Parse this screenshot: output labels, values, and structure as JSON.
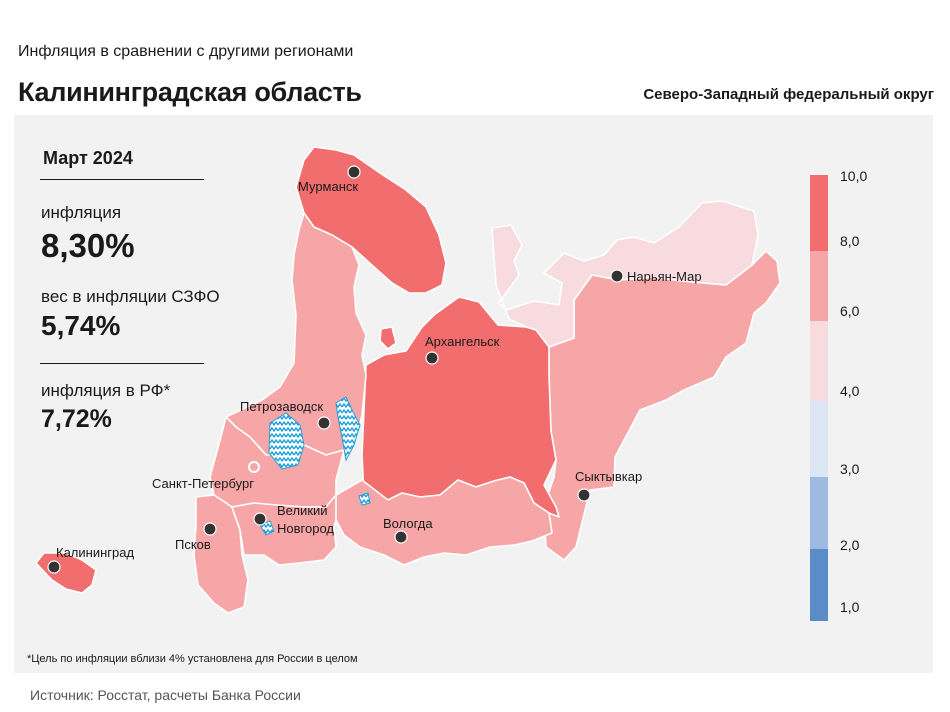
{
  "header": {
    "supertitle": "Инфляция в сравнении с другими регионами",
    "title": "Калининградская область",
    "district": "Северо-Западный федеральный округ"
  },
  "info": {
    "period": "Март 2024",
    "inflation_label": "инфляция",
    "inflation_value": "8,30%",
    "weight_label": "вес в инфляции СЗФО",
    "weight_value": "5,74%",
    "rf_label": "инфляция в РФ*",
    "rf_value": "7,72%"
  },
  "legend": {
    "ticks": [
      "10,0",
      "8,0",
      "6,0",
      "4,0",
      "3,0",
      "2,0",
      "1,0"
    ],
    "colors": [
      "#f26d6d",
      "#f6a6a6",
      "#f8dbdf",
      "#dce6f5",
      "#9dbbe0",
      "#5b8cc8"
    ]
  },
  "cities": {
    "murmansk": "Мурманск",
    "naryan_mar": "Нарьян-Мар",
    "arkhangelsk": "Архангельск",
    "petrozavodsk": "Петрозаводск",
    "spb": "Санкт-Петербург",
    "syktyvkar": "Сыктывкар",
    "novgorod_1": "Великий",
    "novgorod_2": "Новгород",
    "pskov": "Псков",
    "vologda": "Вологда",
    "kaliningrad": "Калининград"
  },
  "region_colors": {
    "high": "#f26d6d",
    "mid": "#f6a6a6",
    "low": "#f8dbdf",
    "water": "#1f9fd8"
  },
  "footnote": "*Цель по инфляции вблизи 4% установлена для России в целом",
  "source": "Источник: Росстат, расчеты Банка России"
}
